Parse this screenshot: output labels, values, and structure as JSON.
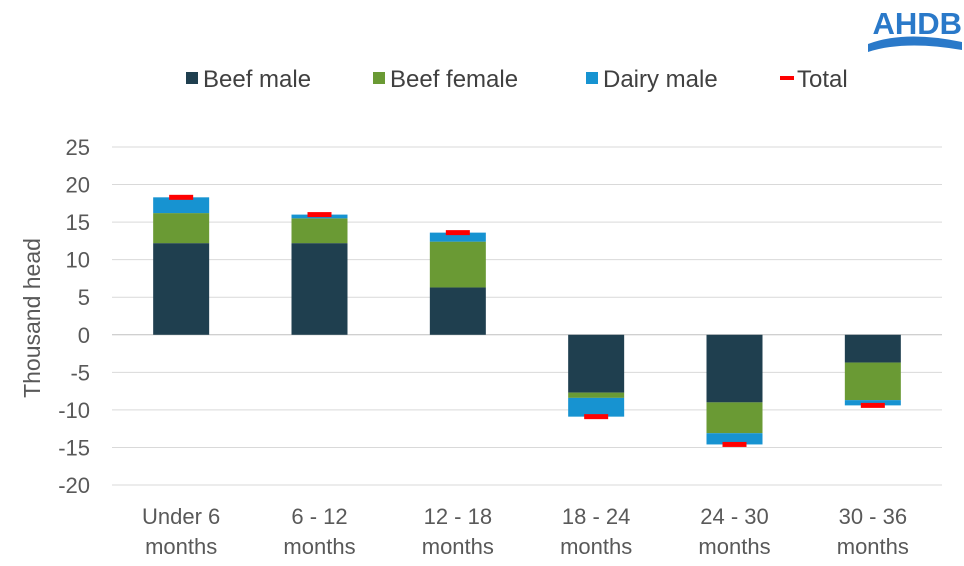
{
  "logo": {
    "text": "AHDB"
  },
  "chart_data": {
    "type": "bar",
    "stacked": true,
    "categories": [
      "Under 6\nmonths",
      "6 - 12\nmonths",
      "12 - 18\nmonths",
      "18 - 24\nmonths",
      "24 - 30\nmonths",
      "30 - 36\nmonths"
    ],
    "series": [
      {
        "name": "Beef male",
        "color": "#1f3f4f",
        "values": [
          12.2,
          12.2,
          6.3,
          -7.7,
          -9.0,
          -3.7
        ]
      },
      {
        "name": "Beef female",
        "color": "#6a9a34",
        "values": [
          4.0,
          3.3,
          6.1,
          -0.7,
          -4.1,
          -5.0
        ]
      },
      {
        "name": "Dairy male",
        "color": "#1793d1",
        "values": [
          2.1,
          0.5,
          1.2,
          -2.5,
          -1.5,
          -0.7
        ]
      }
    ],
    "total": {
      "name": "Total",
      "color": "#ff0000",
      "values": [
        18.3,
        16.0,
        13.6,
        -10.9,
        -14.6,
        -9.4
      ]
    },
    "ylabel": "Thousand head",
    "ylim": [
      -20,
      25
    ],
    "yticks": [
      25,
      20,
      15,
      10,
      5,
      0,
      -5,
      -10,
      -15,
      -20
    ],
    "grid": true,
    "legend_position": "top"
  }
}
